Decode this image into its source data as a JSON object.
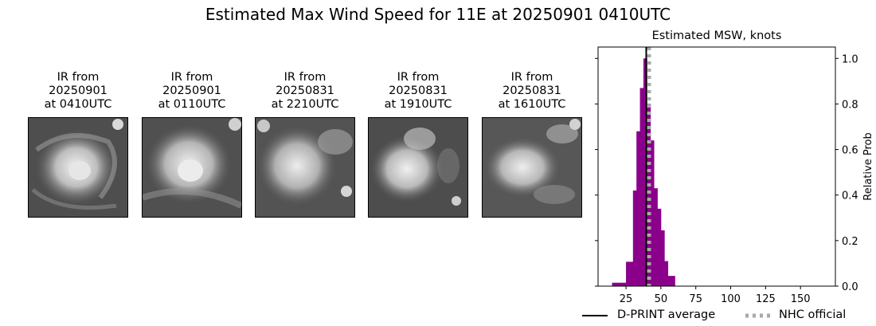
{
  "title": "Estimated Max Wind Speed for 11E at 20250901 0410UTC",
  "panels": [
    {
      "caption": "IR from\n20250901\nat 0410UTC"
    },
    {
      "caption": "IR from\n20250901\nat 0110UTC"
    },
    {
      "caption": "IR from\n20250831\nat 2210UTC"
    },
    {
      "caption": "IR from\n20250831\nat 1910UTC"
    },
    {
      "caption": "IR from\n20250831\nat 1610UTC"
    }
  ],
  "chart_data": {
    "type": "bar",
    "title": "Estimated MSW, knots",
    "xlabel": "",
    "ylabel": "Relative Prob",
    "xlim": [
      5,
      175
    ],
    "ylim": [
      0,
      1.05
    ],
    "xticks": [
      25,
      50,
      75,
      100,
      125,
      150
    ],
    "yticks": [
      0.0,
      0.2,
      0.4,
      0.6,
      0.8,
      1.0
    ],
    "bin_width": 2.5,
    "bins": [
      {
        "x0": 15,
        "x1": 17.5,
        "value": 0.015
      },
      {
        "x0": 17.5,
        "x1": 20,
        "value": 0.015
      },
      {
        "x0": 20,
        "x1": 22.5,
        "value": 0.015
      },
      {
        "x0": 22.5,
        "x1": 25,
        "value": 0.015
      },
      {
        "x0": 25,
        "x1": 27.5,
        "value": 0.107
      },
      {
        "x0": 27.5,
        "x1": 30,
        "value": 0.107
      },
      {
        "x0": 30,
        "x1": 32.5,
        "value": 0.42
      },
      {
        "x0": 32.5,
        "x1": 35,
        "value": 0.68
      },
      {
        "x0": 35,
        "x1": 37.5,
        "value": 0.87
      },
      {
        "x0": 37.5,
        "x1": 40,
        "value": 1.0
      },
      {
        "x0": 40,
        "x1": 42.5,
        "value": 0.8
      },
      {
        "x0": 42.5,
        "x1": 45,
        "value": 0.64
      },
      {
        "x0": 45,
        "x1": 47.5,
        "value": 0.43
      },
      {
        "x0": 47.5,
        "x1": 50,
        "value": 0.34
      },
      {
        "x0": 50,
        "x1": 52.5,
        "value": 0.245
      },
      {
        "x0": 52.5,
        "x1": 55,
        "value": 0.11
      },
      {
        "x0": 55,
        "x1": 57.5,
        "value": 0.045
      },
      {
        "x0": 57.5,
        "x1": 60,
        "value": 0.045
      }
    ],
    "bar_color": "#8b008b",
    "lines": [
      {
        "name": "D-PRINT average",
        "x": 39.5,
        "color": "#000000",
        "style": "solid"
      },
      {
        "name": "NHC official",
        "x": 41.5,
        "color": "#a9a9a9",
        "style": "dotted"
      }
    ],
    "legend_position": "bottom"
  }
}
